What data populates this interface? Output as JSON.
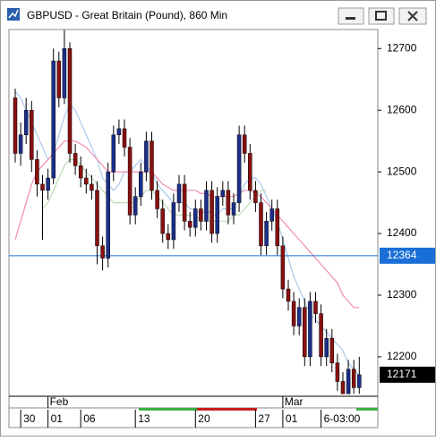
{
  "window": {
    "title": "GBPUSD - Great Britain (Pound), 860 Min"
  },
  "chart_data": {
    "type": "candlestick",
    "open": [
      12620,
      12530,
      12560,
      12600,
      12520,
      12480,
      12470,
      12490,
      12680,
      12620,
      12700,
      12530,
      12510,
      12490,
      12480,
      12470,
      12380,
      12360,
      12500,
      12560,
      12570,
      12540,
      12430,
      12460,
      12500,
      12550,
      12470,
      12440,
      12400,
      12390,
      12450,
      12480,
      12420,
      12410,
      12440,
      12420,
      12470,
      12400,
      12460,
      12470,
      12430,
      12450,
      12560,
      12530,
      12470,
      12450,
      12380,
      12420,
      12440,
      12380,
      12310,
      12290,
      12250,
      12280,
      12200,
      12290,
      12270,
      12200,
      12230,
      12190,
      12160,
      12140,
      12180,
      12150
    ],
    "high": [
      12635,
      12580,
      12620,
      12615,
      12535,
      12495,
      12505,
      12700,
      12695,
      12730,
      12710,
      12545,
      12525,
      12505,
      12495,
      12485,
      12395,
      12515,
      12575,
      12585,
      12585,
      12555,
      12475,
      12515,
      12565,
      12565,
      12485,
      12455,
      12415,
      12465,
      12495,
      12495,
      12435,
      12455,
      12455,
      12485,
      12485,
      12475,
      12485,
      12485,
      12465,
      12575,
      12575,
      12545,
      12485,
      12465,
      12435,
      12455,
      12455,
      12395,
      12325,
      12305,
      12295,
      12295,
      12305,
      12305,
      12285,
      12245,
      12245,
      12205,
      12175,
      12195,
      12195,
      12200
    ],
    "low": [
      12515,
      12510,
      12545,
      12500,
      12460,
      12390,
      12455,
      12480,
      12605,
      12610,
      12515,
      12495,
      12475,
      12465,
      12455,
      12350,
      12340,
      12345,
      12485,
      12545,
      12525,
      12415,
      12415,
      12445,
      12485,
      12455,
      12425,
      12385,
      12375,
      12375,
      12435,
      12405,
      12395,
      12395,
      12405,
      12405,
      12385,
      12385,
      12445,
      12415,
      12415,
      12435,
      12515,
      12455,
      12435,
      12365,
      12365,
      12405,
      12365,
      12295,
      12275,
      12235,
      12235,
      12185,
      12185,
      12255,
      12185,
      12185,
      12175,
      12145,
      12140,
      12140,
      12140,
      12140
    ],
    "close": [
      12530,
      12560,
      12600,
      12520,
      12480,
      12470,
      12490,
      12680,
      12620,
      12700,
      12530,
      12510,
      12490,
      12480,
      12470,
      12380,
      12360,
      12500,
      12560,
      12570,
      12540,
      12430,
      12460,
      12500,
      12550,
      12470,
      12440,
      12400,
      12390,
      12450,
      12480,
      12420,
      12410,
      12440,
      12420,
      12470,
      12400,
      12460,
      12470,
      12430,
      12450,
      12560,
      12530,
      12470,
      12450,
      12380,
      12420,
      12440,
      12380,
      12310,
      12290,
      12250,
      12280,
      12200,
      12290,
      12270,
      12200,
      12230,
      12190,
      12160,
      12140,
      12180,
      12150,
      12171
    ],
    "up_color": "#1c2f8c",
    "down_color": "#8b1010",
    "lines": [
      {
        "color": "#a9c9ee",
        "values": [
          12630,
          12620,
          12600,
          12580,
          12560,
          12540,
          12520,
          12530,
          12560,
          12590,
          12610,
          12600,
          12580,
          12560,
          12540,
          12520,
          12490,
          12480,
          12470,
          12480,
          12500,
          12500,
          12510,
          12520,
          12510,
          12500,
          12480,
          12470,
          12460,
          12450,
          12450,
          12450,
          12440,
          12440,
          12430,
          12440,
          12430,
          12430,
          12440,
          12440,
          12440,
          12460,
          12480,
          12490,
          12490,
          12480,
          12460,
          12440,
          12420,
          12390,
          12360,
          12330,
          12310,
          12290,
          12270,
          12260,
          12250,
          12240,
          12230,
          12220,
          12210,
          12190,
          12180,
          12170
        ]
      },
      {
        "color": "#f08ab4",
        "values": [
          12390,
          12420,
          12450,
          12480,
          12500,
          12510,
          12520,
          12530,
          12540,
          12550,
          12550,
          12550,
          12545,
          12540,
          12530,
          12520,
          12510,
          12500,
          12500,
          12500,
          12500,
          12500,
          12500,
          12500,
          12500,
          12500,
          12490,
          12480,
          12475,
          12470,
          12470,
          12470,
          12470,
          12470,
          12465,
          12465,
          12460,
          12460,
          12460,
          12460,
          12460,
          12465,
          12470,
          12470,
          12465,
          12460,
          12450,
          12440,
          12430,
          12420,
          12410,
          12400,
          12390,
          12380,
          12370,
          12360,
          12350,
          12340,
          12330,
          12320,
          12300,
          12290,
          12280,
          12280
        ]
      },
      {
        "color": "#bcdcb4",
        "values": [
          null,
          null,
          null,
          null,
          null,
          12440,
          12450,
          12470,
          12490,
          12510,
          12520,
          12520,
          12510,
          12500,
          12490,
          12480,
          12470,
          12460,
          12450,
          12450,
          12450,
          12450,
          12450,
          12460,
          12470,
          12470,
          12460,
          12450,
          12440,
          12430,
          12430,
          12430,
          12430,
          12430,
          12420,
          12420,
          12420,
          12420,
          12420,
          12420,
          12430,
          12430,
          12440,
          12450,
          12460,
          12470,
          12470,
          null,
          null,
          null,
          null,
          null,
          null,
          null,
          null,
          null,
          null,
          null,
          null,
          null,
          null,
          null,
          null,
          null
        ]
      }
    ],
    "ylim": [
      12136,
      12728
    ],
    "yticks": [
      12200,
      12300,
      12400,
      12500,
      12600,
      12700
    ],
    "hline": {
      "value": 12364,
      "color": "#1a6fd6"
    },
    "last_price": 12171,
    "month_ticks": [
      {
        "value": 6,
        "label": "Feb"
      },
      {
        "value": 49,
        "label": "Mar"
      }
    ],
    "xticks": [
      {
        "value": 1,
        "label": "30"
      },
      {
        "value": 6,
        "label": "01"
      },
      {
        "value": 12,
        "label": "06"
      },
      {
        "value": 22,
        "label": "13"
      },
      {
        "value": 33,
        "label": "20"
      },
      {
        "value": 44,
        "label": "27"
      },
      {
        "value": 49,
        "label": "01"
      },
      {
        "value": 56,
        "label": "6-03:00"
      }
    ]
  }
}
